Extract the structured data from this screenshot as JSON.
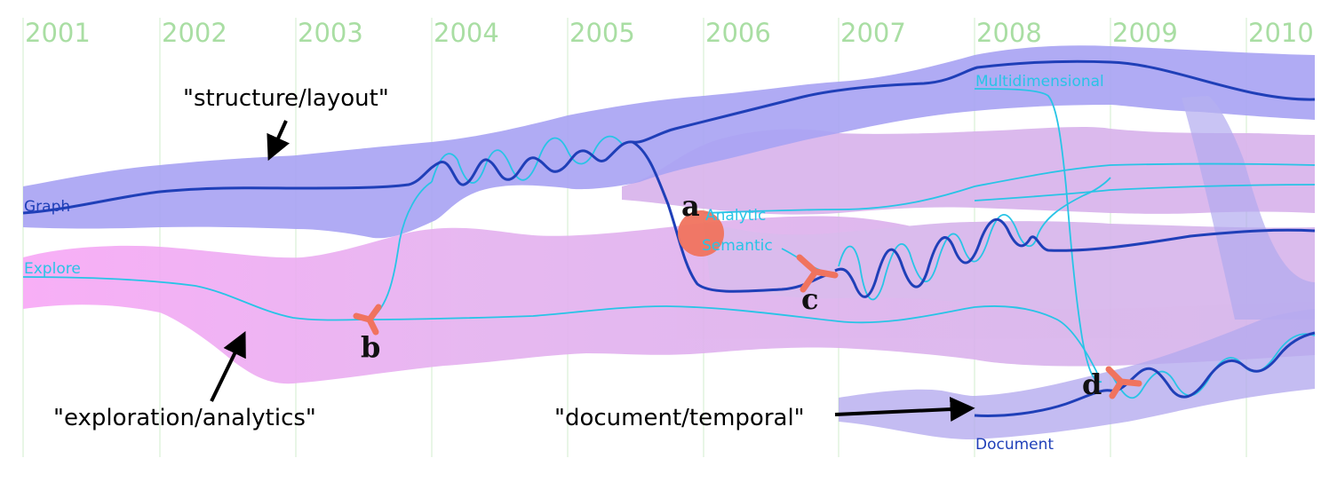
{
  "years": [
    "2001",
    "2002",
    "2003",
    "2004",
    "2005",
    "2006",
    "2007",
    "2008",
    "2009",
    "2010"
  ],
  "topic_labels": {
    "graph": "Graph",
    "explore": "Explore",
    "analytic": "Analytic",
    "semantic": "Semantic",
    "multidimensional": "Multidimensional",
    "document": "Document"
  },
  "annotations": {
    "structure": "\"structure/layout\"",
    "exploration": "\"exploration/analytics\"",
    "document": "\"document/temporal\""
  },
  "event_markers": {
    "a": "a",
    "b": "b",
    "c": "c",
    "d": "d"
  },
  "colors": {
    "year_text": "#a9dea3",
    "year_grid": "#d9efd6",
    "blue_band": "#a9a3f4",
    "pink_band": "#dcb1ee",
    "explore_band": "#f6a8f4",
    "dark_line": "#1f3fb8",
    "light_line": "#28c4e6",
    "marker": "#f0735e"
  }
}
